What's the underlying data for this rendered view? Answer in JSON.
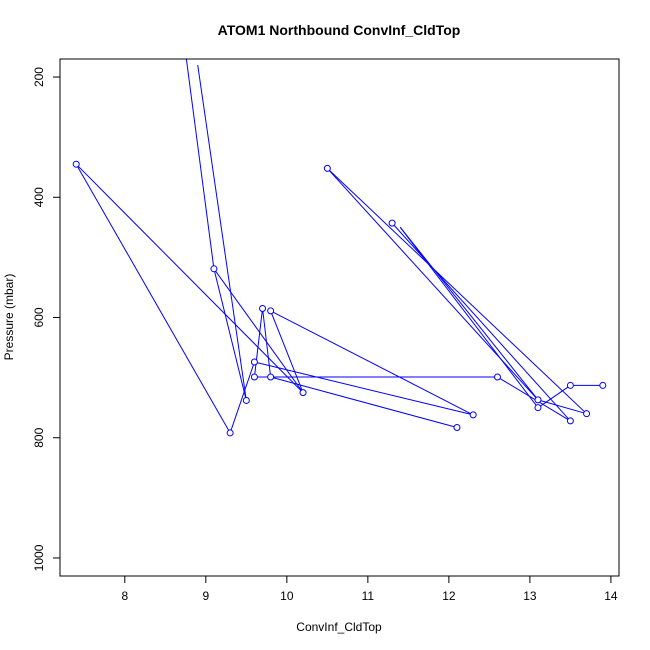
{
  "chart_data": {
    "type": "line",
    "title": "ATOM1 Northbound ConvInf_CldTop",
    "xlabel": "ConvInf_CldTop",
    "ylabel": "Pressure (mbar)",
    "xlim": [
      7.2,
      14.1
    ],
    "ylim": [
      1030,
      170
    ],
    "y_reversed": true,
    "x_ticks": [
      8,
      9,
      10,
      11,
      12,
      13,
      14
    ],
    "y_ticks": [
      200,
      400,
      600,
      800,
      1000
    ],
    "grid": false,
    "legend": "none",
    "series_color": "#0000ff",
    "points": [
      {
        "x": 8.75,
        "y": 160
      },
      {
        "x": 9.1,
        "y": 519
      },
      {
        "x": 10.2,
        "y": 725
      },
      {
        "x": 7.4,
        "y": 345
      },
      {
        "x": 9.3,
        "y": 792
      },
      {
        "x": 12.3,
        "y": 762
      },
      {
        "x": 9.6,
        "y": 674
      },
      {
        "x": 12.1,
        "y": 783
      },
      {
        "x": 9.7,
        "y": 585
      },
      {
        "x": 9.8,
        "y": 699
      },
      {
        "x": 9.6,
        "y": 699
      },
      {
        "x": 12.6,
        "y": 699
      },
      {
        "x": 13.5,
        "y": 772
      },
      {
        "x": 11.3,
        "y": 443
      },
      {
        "x": 13.1,
        "y": 737
      },
      {
        "x": 10.5,
        "y": 352
      },
      {
        "x": 13.7,
        "y": 760
      },
      {
        "x": 13.5,
        "y": 713
      },
      {
        "x": 13.9,
        "y": 713
      },
      {
        "x": 13.1,
        "y": 750
      },
      {
        "x": 11.4,
        "y": 450
      },
      {
        "x": 13.1,
        "y": 737
      }
    ],
    "segments": [
      [
        0,
        1
      ],
      [
        1,
        2
      ],
      [
        2,
        3
      ],
      [
        3,
        4
      ],
      [
        4,
        6
      ],
      [
        6,
        5
      ],
      [
        9,
        7
      ],
      [
        8,
        9
      ],
      [
        8,
        10
      ],
      [
        10,
        11
      ],
      [
        11,
        12
      ],
      [
        12,
        13
      ],
      [
        15,
        14
      ],
      [
        14,
        16
      ],
      [
        16,
        15
      ],
      [
        17,
        18
      ],
      [
        17,
        19
      ],
      [
        19,
        20
      ],
      [
        20,
        21
      ]
    ],
    "extra_lines": [
      {
        "from": {
          "x": 9.5,
          "y": 738
        },
        "to": {
          "x": 8.9,
          "y": 180
        }
      },
      {
        "from": {
          "x": 9.5,
          "y": 738
        },
        "to": {
          "x": 9.1,
          "y": 519
        }
      },
      {
        "from": {
          "x": 9.8,
          "y": 589
        },
        "to": {
          "x": 10.2,
          "y": 725
        }
      },
      {
        "from": {
          "x": 9.8,
          "y": 589
        },
        "to": {
          "x": 12.3,
          "y": 762
        }
      }
    ],
    "marker_points": [
      {
        "x": 7.4,
        "y": 345
      },
      {
        "x": 9.1,
        "y": 519
      },
      {
        "x": 9.3,
        "y": 792
      },
      {
        "x": 9.5,
        "y": 738
      },
      {
        "x": 9.6,
        "y": 674
      },
      {
        "x": 9.6,
        "y": 699
      },
      {
        "x": 9.7,
        "y": 585
      },
      {
        "x": 9.8,
        "y": 589
      },
      {
        "x": 9.8,
        "y": 699
      },
      {
        "x": 10.2,
        "y": 725
      },
      {
        "x": 10.5,
        "y": 352
      },
      {
        "x": 11.3,
        "y": 443
      },
      {
        "x": 12.1,
        "y": 783
      },
      {
        "x": 12.3,
        "y": 762
      },
      {
        "x": 12.6,
        "y": 699
      },
      {
        "x": 13.1,
        "y": 737
      },
      {
        "x": 13.1,
        "y": 750
      },
      {
        "x": 13.5,
        "y": 713
      },
      {
        "x": 13.5,
        "y": 772
      },
      {
        "x": 13.7,
        "y": 760
      },
      {
        "x": 13.9,
        "y": 713
      }
    ]
  }
}
